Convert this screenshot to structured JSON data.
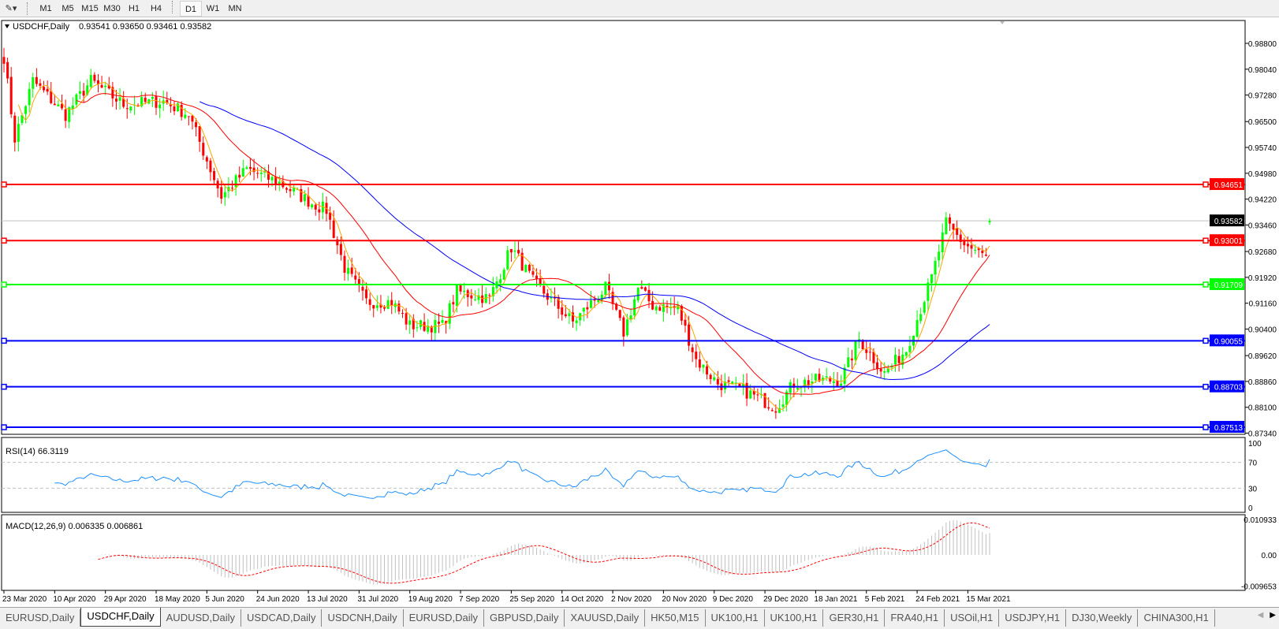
{
  "toolbar": {
    "timeframes": [
      "M1",
      "M5",
      "M15",
      "M30",
      "H1",
      "H4",
      "D1",
      "W1",
      "MN"
    ],
    "active_timeframe": "D1"
  },
  "chart_header": {
    "symbol": "USDCHF,Daily",
    "ohlc": "0.93541 0.93650 0.93461 0.93582"
  },
  "colors": {
    "bull": "#00ff00",
    "bear": "#ff0000",
    "ma_fast": "#ffa500",
    "ma_mid": "#ff0000",
    "ma_slow": "#0000ff",
    "rsi": "#1e90ff",
    "macd_hist": "#c0c0c0",
    "macd_signal": "#ff0000"
  },
  "chart_data": {
    "type": "candlestick",
    "symbol": "USDCHF",
    "timeframe": "Daily",
    "last_bar": {
      "open": 0.93541,
      "high": 0.9365,
      "low": 0.93461,
      "close": 0.93582
    },
    "close_keyframes": [
      [
        0,
        0.984
      ],
      [
        3,
        0.96
      ],
      [
        8,
        0.977
      ],
      [
        17,
        0.967
      ],
      [
        24,
        0.977
      ],
      [
        33,
        0.97
      ],
      [
        44,
        0.971
      ],
      [
        51,
        0.967
      ],
      [
        60,
        0.943
      ],
      [
        67,
        0.951
      ],
      [
        76,
        0.947
      ],
      [
        85,
        0.941
      ],
      [
        89,
        0.939
      ],
      [
        94,
        0.922
      ],
      [
        100,
        0.912
      ],
      [
        107,
        0.912
      ],
      [
        112,
        0.905
      ],
      [
        121,
        0.905
      ],
      [
        125,
        0.915
      ],
      [
        134,
        0.913
      ],
      [
        140,
        0.928
      ],
      [
        146,
        0.918
      ],
      [
        157,
        0.906
      ],
      [
        166,
        0.916
      ],
      [
        171,
        0.903
      ],
      [
        175,
        0.916
      ],
      [
        179,
        0.911
      ],
      [
        186,
        0.91
      ],
      [
        191,
        0.895
      ],
      [
        197,
        0.888
      ],
      [
        204,
        0.886
      ],
      [
        213,
        0.881
      ],
      [
        218,
        0.888
      ],
      [
        225,
        0.889
      ],
      [
        231,
        0.889
      ],
      [
        236,
        0.901
      ],
      [
        243,
        0.891
      ],
      [
        249,
        0.898
      ],
      [
        256,
        0.919
      ],
      [
        260,
        0.935
      ],
      [
        265,
        0.929
      ],
      [
        271,
        0.925
      ],
      [
        272,
        0.93582
      ]
    ],
    "price_axis_ticks": [
      "0.98800",
      "0.98040",
      "0.97280",
      "0.96500",
      "0.95740",
      "0.94980",
      "0.94220",
      "0.93460",
      "0.92680",
      "0.91920",
      "0.91160",
      "0.90400",
      "0.89620",
      "0.88860",
      "0.88100",
      "0.87340"
    ],
    "ylim": [
      0.8734,
      0.988
    ],
    "current_price": "0.93582",
    "horizontal_levels": [
      {
        "value": "0.94651",
        "color": "#ff0000"
      },
      {
        "value": "0.93001",
        "color": "#ff0000"
      },
      {
        "value": "0.91709",
        "color": "#00ff00"
      },
      {
        "value": "0.90055",
        "color": "#0000ff"
      },
      {
        "value": "0.88703",
        "color": "#0000ff"
      },
      {
        "value": "0.87513",
        "color": "#0000ff"
      }
    ],
    "date_labels": [
      "23 Mar 2020",
      "10 Apr 2020",
      "29 Apr 2020",
      "18 May 2020",
      "5 Jun 2020",
      "24 Jun 2020",
      "13 Jul 2020",
      "31 Jul 2020",
      "19 Aug 2020",
      "7 Sep 2020",
      "25 Sep 2020",
      "14 Oct 2020",
      "2 Nov 2020",
      "20 Nov 2020",
      "9 Dec 2020",
      "29 Dec 2020",
      "18 Jan 2021",
      "5 Feb 2021",
      "24 Feb 2021",
      "15 Mar 2021"
    ],
    "moving_averages": [
      {
        "period": 5,
        "color": "orange"
      },
      {
        "period": 21,
        "color": "red"
      },
      {
        "period": 55,
        "color": "blue"
      }
    ],
    "rsi": {
      "label": "RSI(14) 66.3119",
      "ticks": [
        "100",
        "70",
        "30",
        "0"
      ],
      "levels": [
        70,
        30
      ]
    },
    "macd": {
      "label": "MACD(12,26,9) 0.006335 0.006861",
      "ticks": [
        "0.010933",
        "0.00",
        "-0.009653"
      ]
    }
  },
  "tabs": [
    "EURUSD,Daily",
    "USDCHF,Daily",
    "AUDUSD,Daily",
    "USDCAD,Daily",
    "USDCNH,Daily",
    "EURUSD,Daily",
    "GBPUSD,Daily",
    "XAUUSD,Daily",
    "HK50,M15",
    "UK100,H1",
    "UK100,H1",
    "GER30,H1",
    "FRA40,H1",
    "USOil,H1",
    "USDJPY,H1",
    "DJ30,Weekly",
    "CHINA300,H1"
  ],
  "active_tab": 1
}
